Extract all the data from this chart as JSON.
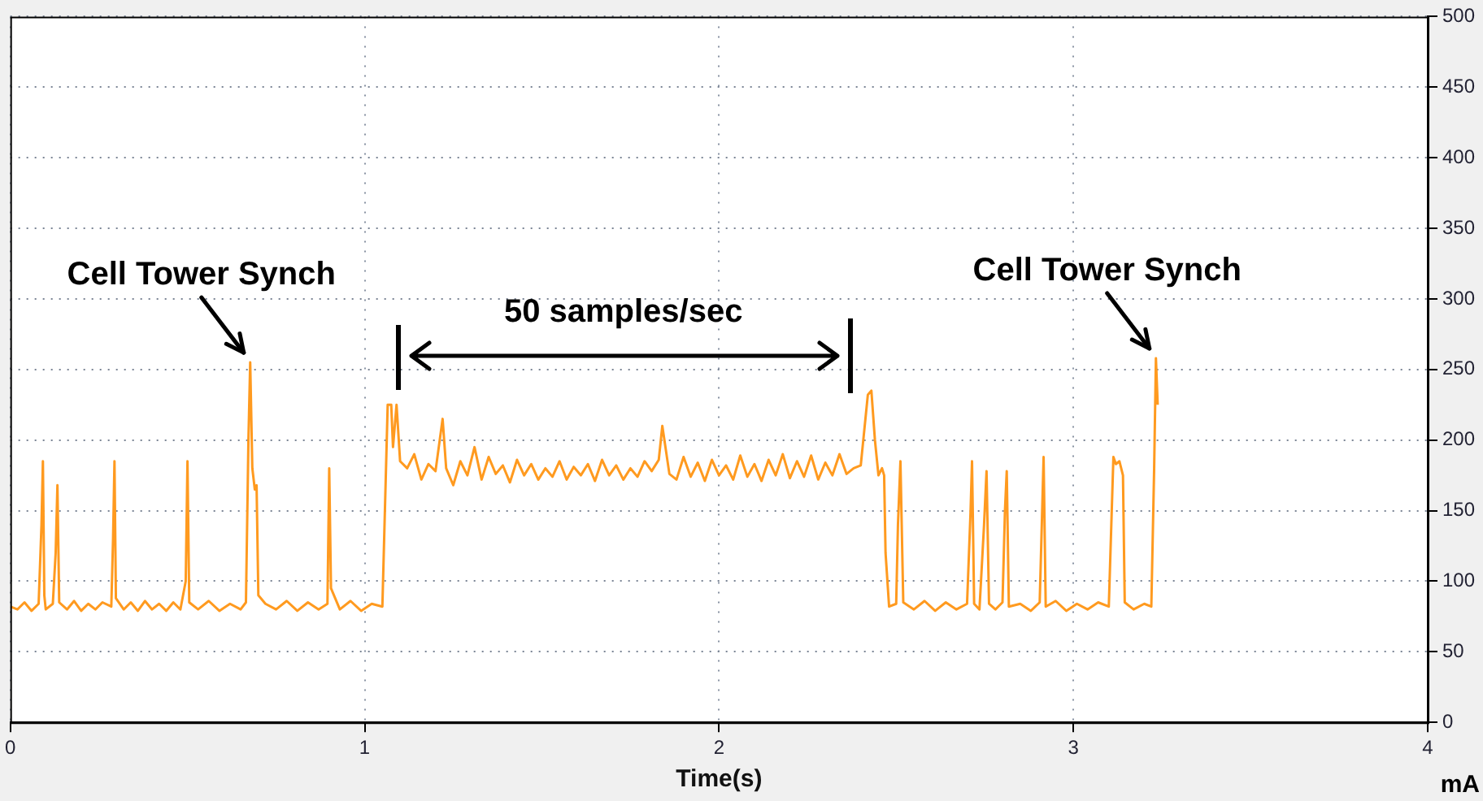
{
  "chart_data": {
    "type": "line",
    "xlabel": "Time(s)",
    "ylabel": "mA",
    "xlim": [
      0,
      4
    ],
    "xticks": [
      0,
      1,
      2,
      3,
      4
    ],
    "ylim": [
      0,
      500
    ],
    "yticks": [
      0,
      50,
      100,
      150,
      200,
      250,
      300,
      350,
      400,
      450,
      500
    ],
    "grid": true,
    "line_style": "solid",
    "marker": "none",
    "annotations": [
      {
        "text": "Cell Tower Synch",
        "x": 0.677,
        "y": 255
      },
      {
        "text": "Cell Tower Synch",
        "x": 3.233,
        "y": 258
      },
      "50 samples/sec"
    ],
    "series": [
      {
        "color": "#ff9a1f",
        "x": [
          0,
          0.02,
          0.04,
          0.06,
          0.08,
          0.088,
          0.092,
          0.096,
          0.1,
          0.12,
          0.128,
          0.133,
          0.138,
          0.16,
          0.18,
          0.2,
          0.22,
          0.24,
          0.26,
          0.285,
          0.29,
          0.294,
          0.298,
          0.32,
          0.34,
          0.36,
          0.38,
          0.4,
          0.42,
          0.44,
          0.46,
          0.48,
          0.495,
          0.5,
          0.505,
          0.53,
          0.56,
          0.59,
          0.62,
          0.65,
          0.665,
          0.672,
          0.677,
          0.683,
          0.69,
          0.695,
          0.7,
          0.72,
          0.75,
          0.78,
          0.81,
          0.84,
          0.87,
          0.895,
          0.9,
          0.905,
          0.93,
          0.96,
          0.99,
          1.02,
          1.05,
          1.065,
          1.075,
          1.08,
          1.09,
          1.1,
          1.12,
          1.14,
          1.16,
          1.18,
          1.2,
          1.22,
          1.23,
          1.25,
          1.27,
          1.29,
          1.31,
          1.33,
          1.35,
          1.37,
          1.39,
          1.41,
          1.43,
          1.45,
          1.47,
          1.49,
          1.51,
          1.53,
          1.55,
          1.57,
          1.59,
          1.61,
          1.63,
          1.65,
          1.67,
          1.69,
          1.71,
          1.73,
          1.75,
          1.77,
          1.79,
          1.81,
          1.83,
          1.84,
          1.86,
          1.88,
          1.9,
          1.92,
          1.94,
          1.96,
          1.98,
          2,
          2.02,
          2.04,
          2.06,
          2.08,
          2.1,
          2.12,
          2.14,
          2.16,
          2.18,
          2.2,
          2.22,
          2.24,
          2.26,
          2.28,
          2.3,
          2.32,
          2.34,
          2.36,
          2.38,
          2.4,
          2.42,
          2.43,
          2.44,
          2.45,
          2.46,
          2.466,
          2.47,
          2.48,
          2.5,
          2.505,
          2.512,
          2.52,
          2.55,
          2.58,
          2.61,
          2.64,
          2.67,
          2.7,
          2.71,
          2.714,
          2.72,
          2.735,
          2.748,
          2.755,
          2.762,
          2.78,
          2.8,
          2.807,
          2.812,
          2.818,
          2.85,
          2.88,
          2.905,
          2.912,
          2.916,
          2.922,
          2.95,
          2.98,
          3.01,
          3.04,
          3.07,
          3.1,
          3.113,
          3.12,
          3.13,
          3.14,
          3.145,
          3.17,
          3.2,
          3.22,
          3.228,
          3.233,
          3.238
        ],
        "values": [
          82,
          80,
          85,
          79,
          84,
          140,
          185,
          90,
          80,
          84,
          120,
          168,
          85,
          80,
          86,
          79,
          84,
          80,
          85,
          82,
          130,
          185,
          88,
          80,
          85,
          79,
          86,
          80,
          84,
          79,
          85,
          80,
          100,
          185,
          85,
          80,
          86,
          79,
          84,
          80,
          85,
          200,
          255,
          180,
          165,
          168,
          90,
          84,
          80,
          86,
          79,
          85,
          80,
          84,
          180,
          95,
          80,
          86,
          79,
          84,
          82,
          225,
          225,
          195,
          225,
          185,
          180,
          190,
          172,
          183,
          178,
          215,
          180,
          168,
          185,
          175,
          195,
          172,
          188,
          176,
          182,
          170,
          186,
          175,
          183,
          172,
          180,
          174,
          185,
          172,
          181,
          175,
          183,
          171,
          186,
          175,
          182,
          172,
          180,
          174,
          185,
          178,
          186,
          210,
          176,
          172,
          188,
          174,
          184,
          171,
          186,
          175,
          182,
          172,
          189,
          174,
          183,
          171,
          186,
          175,
          190,
          173,
          185,
          174,
          189,
          172,
          184,
          175,
          190,
          176,
          180,
          182,
          232,
          235,
          200,
          175,
          180,
          175,
          120,
          82,
          84,
          140,
          185,
          85,
          80,
          86,
          79,
          85,
          80,
          84,
          150,
          185,
          84,
          80,
          140,
          178,
          84,
          80,
          85,
          150,
          178,
          82,
          84,
          79,
          85,
          150,
          188,
          82,
          86,
          79,
          84,
          80,
          85,
          82,
          188,
          183,
          185,
          175,
          85,
          80,
          84,
          82,
          180,
          258,
          225
        ]
      }
    ]
  }
}
